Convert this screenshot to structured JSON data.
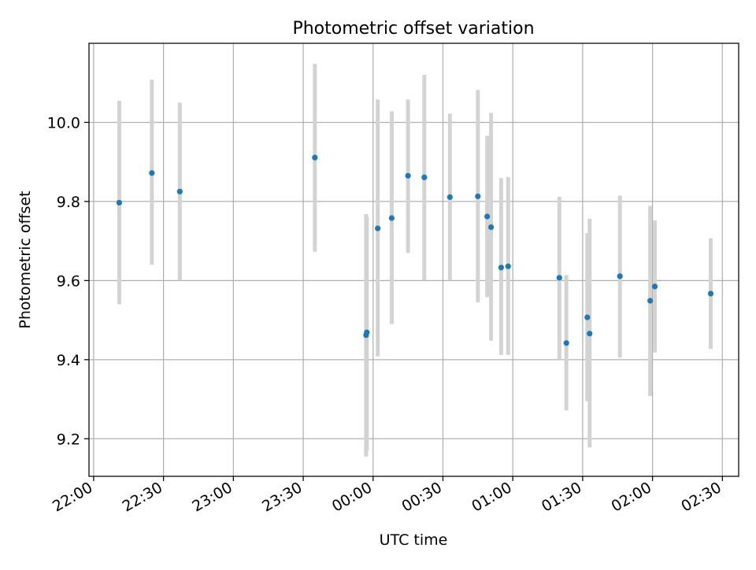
{
  "chart_data": {
    "type": "scatter",
    "title": "Photometric offset variation",
    "xlabel": "UTC time",
    "ylabel": "Photometric offset",
    "grid": true,
    "x_axis_type": "time",
    "xlim": [
      "21:58",
      "02:37"
    ],
    "ylim": [
      9.105,
      10.2
    ],
    "x_ticks": [
      "22:00",
      "22:30",
      "23:00",
      "23:30",
      "00:00",
      "00:30",
      "01:00",
      "01:30",
      "02:00",
      "02:30"
    ],
    "y_ticks": [
      9.2,
      9.4,
      9.6,
      9.8,
      10.0
    ],
    "y_tick_labels": [
      "9.2",
      "9.4",
      "9.6",
      "9.8",
      "10.0"
    ],
    "colors": {
      "marker": "#1f77b4",
      "errorbar": "#d3d3d3",
      "grid": "#b0b0b0"
    },
    "points": [
      {
        "x": "22:11",
        "y": 9.797,
        "ylow": 9.54,
        "yhigh": 10.055
      },
      {
        "x": "22:25",
        "y": 9.872,
        "ylow": 9.64,
        "yhigh": 10.108
      },
      {
        "x": "22:37",
        "y": 9.825,
        "ylow": 9.6,
        "yhigh": 10.05
      },
      {
        "x": "23:35",
        "y": 9.911,
        "ylow": 9.673,
        "yhigh": 10.148
      },
      {
        "x": "23:57",
        "y": 9.462,
        "ylow": 9.155,
        "yhigh": 9.768
      },
      {
        "x": "23:57:20",
        "y": 9.469,
        "ylow": 9.17,
        "yhigh": 9.76
      },
      {
        "x": "00:02",
        "y": 9.732,
        "ylow": 9.408,
        "yhigh": 10.058
      },
      {
        "x": "00:08",
        "y": 9.758,
        "ylow": 9.49,
        "yhigh": 10.028
      },
      {
        "x": "00:15",
        "y": 9.865,
        "ylow": 9.67,
        "yhigh": 10.058
      },
      {
        "x": "00:22",
        "y": 9.861,
        "ylow": 9.6,
        "yhigh": 10.12
      },
      {
        "x": "00:33",
        "y": 9.811,
        "ylow": 9.6,
        "yhigh": 10.022
      },
      {
        "x": "00:45",
        "y": 9.813,
        "ylow": 9.545,
        "yhigh": 10.082
      },
      {
        "x": "00:49",
        "y": 9.762,
        "ylow": 9.558,
        "yhigh": 9.966
      },
      {
        "x": "00:50:40",
        "y": 9.735,
        "ylow": 9.448,
        "yhigh": 10.024
      },
      {
        "x": "00:55",
        "y": 9.633,
        "ylow": 9.412,
        "yhigh": 9.859
      },
      {
        "x": "00:58",
        "y": 9.636,
        "ylow": 9.412,
        "yhigh": 9.862
      },
      {
        "x": "01:20",
        "y": 9.607,
        "ylow": 9.4,
        "yhigh": 9.812
      },
      {
        "x": "01:23",
        "y": 9.442,
        "ylow": 9.272,
        "yhigh": 9.614
      },
      {
        "x": "01:32",
        "y": 9.507,
        "ylow": 9.295,
        "yhigh": 9.72
      },
      {
        "x": "01:33",
        "y": 9.466,
        "ylow": 9.178,
        "yhigh": 9.756
      },
      {
        "x": "01:46",
        "y": 9.611,
        "ylow": 9.405,
        "yhigh": 9.815
      },
      {
        "x": "01:59",
        "y": 9.549,
        "ylow": 9.308,
        "yhigh": 9.789
      },
      {
        "x": "02:01",
        "y": 9.585,
        "ylow": 9.418,
        "yhigh": 9.752
      },
      {
        "x": "02:25",
        "y": 9.567,
        "ylow": 9.427,
        "yhigh": 9.707
      }
    ]
  }
}
